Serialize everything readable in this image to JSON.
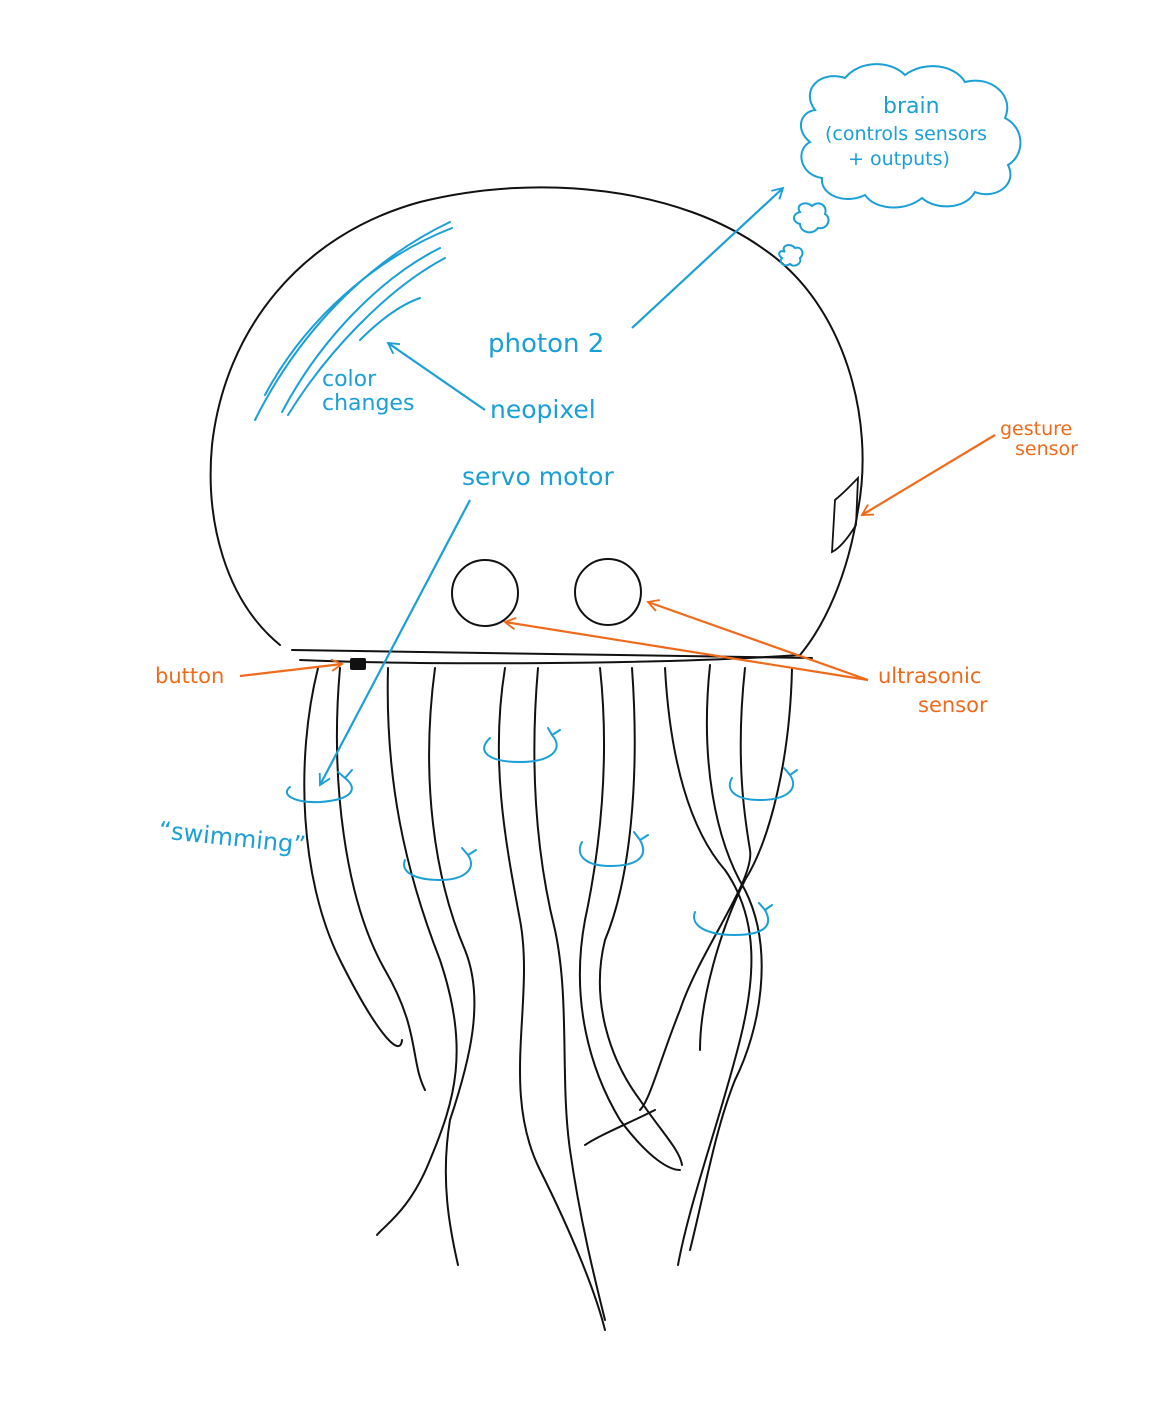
{
  "colors": {
    "ink": "#111111",
    "blue": "#1a9fd6",
    "orange": "#f06a1c"
  },
  "labels": {
    "brain_line1": "brain",
    "brain_line2": "(controls sensors",
    "brain_line3": "+ outputs)",
    "photon": "photon 2",
    "color_line1": "color",
    "color_line2": "changes",
    "neopixel": "neopixel",
    "servo": "servo motor",
    "gesture_line1": "gesture",
    "gesture_line2": "sensor",
    "button": "button",
    "ultrasonic_line1": "ultrasonic",
    "ultrasonic_line2": "sensor",
    "swimming": "“swimming”"
  }
}
